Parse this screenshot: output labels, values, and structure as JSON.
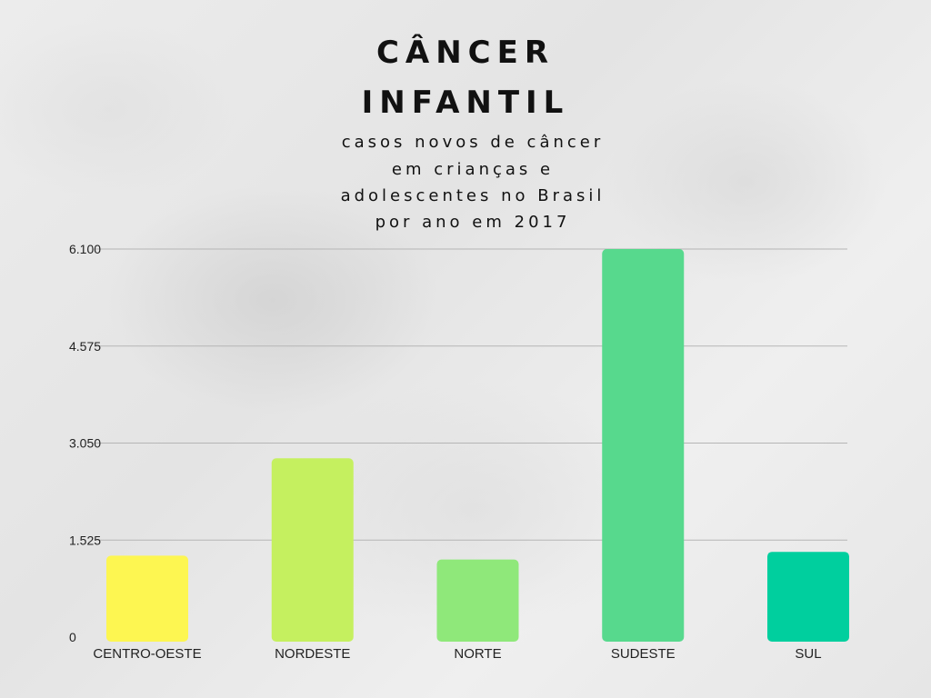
{
  "title": {
    "line1": "CÂNCER",
    "line2": "INFANTIL"
  },
  "subtitle": {
    "line1": "casos novos de câncer",
    "line2": "em crianças e",
    "line3": "adolescentes no Brasil",
    "line4": "por ano em  2017"
  },
  "chart_data": {
    "type": "bar",
    "title": "CÂNCER INFANTIL",
    "subtitle": "casos novos de câncer em crianças e adolescentes no Brasil por ano em  2017",
    "categories": [
      "CENTRO-OESTE",
      "NORDESTE",
      "NORTE",
      "SUDESTE",
      "SUL"
    ],
    "values": [
      1280,
      2810,
      1220,
      6100,
      1340
    ],
    "colors": [
      "#fdf651",
      "#c5f05f",
      "#8fe87a",
      "#57d98d",
      "#00cf9e"
    ],
    "ylim": [
      0,
      6100
    ],
    "yticks": [
      0,
      1525,
      3050,
      4575,
      6100
    ],
    "ytick_labels": [
      "0",
      "1.525",
      "3.050",
      "4.575",
      "6.100"
    ],
    "xlabel": "",
    "ylabel": "",
    "grid": true,
    "gridline_color": "#b5b5b5"
  }
}
